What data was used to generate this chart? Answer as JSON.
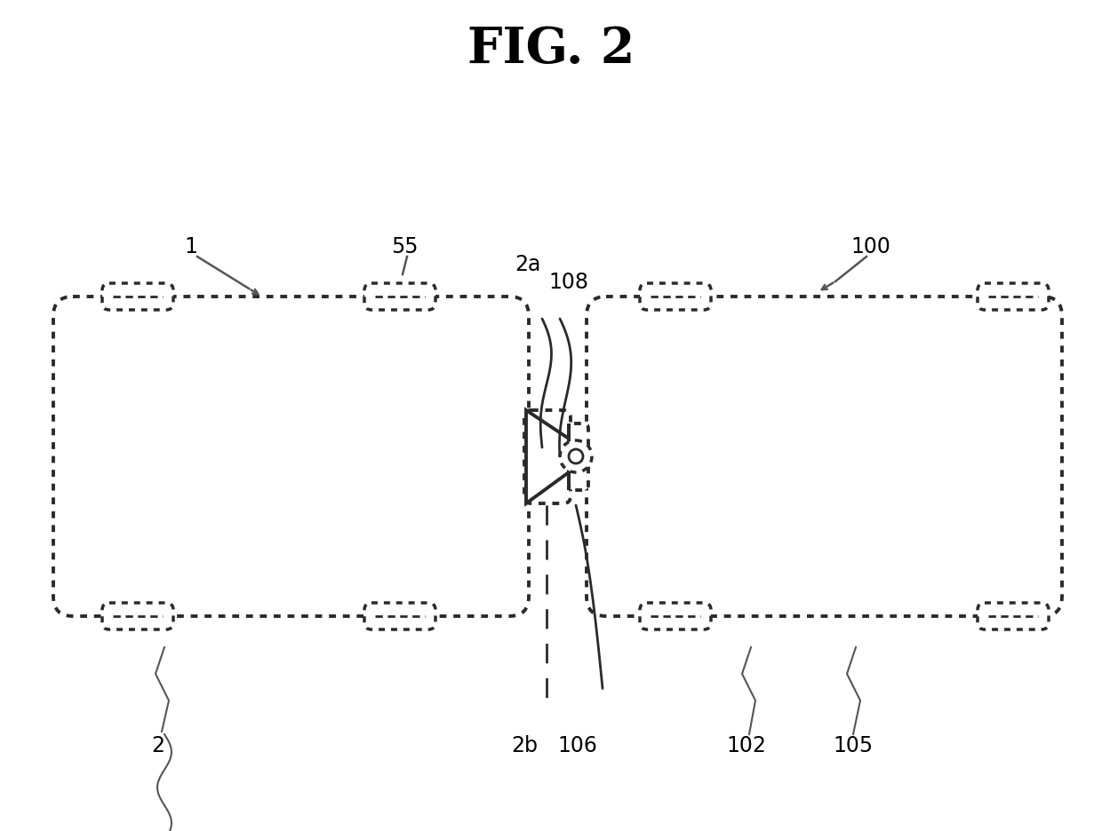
{
  "title": "FIG. 2",
  "background_color": "#ffffff",
  "title_fontsize": 40,
  "title_fontweight": "bold",
  "fig_width": 12.4,
  "fig_height": 9.37,
  "line_color": "#2a2a2a",
  "line_width": 2.8,
  "label_fontsize": 17
}
